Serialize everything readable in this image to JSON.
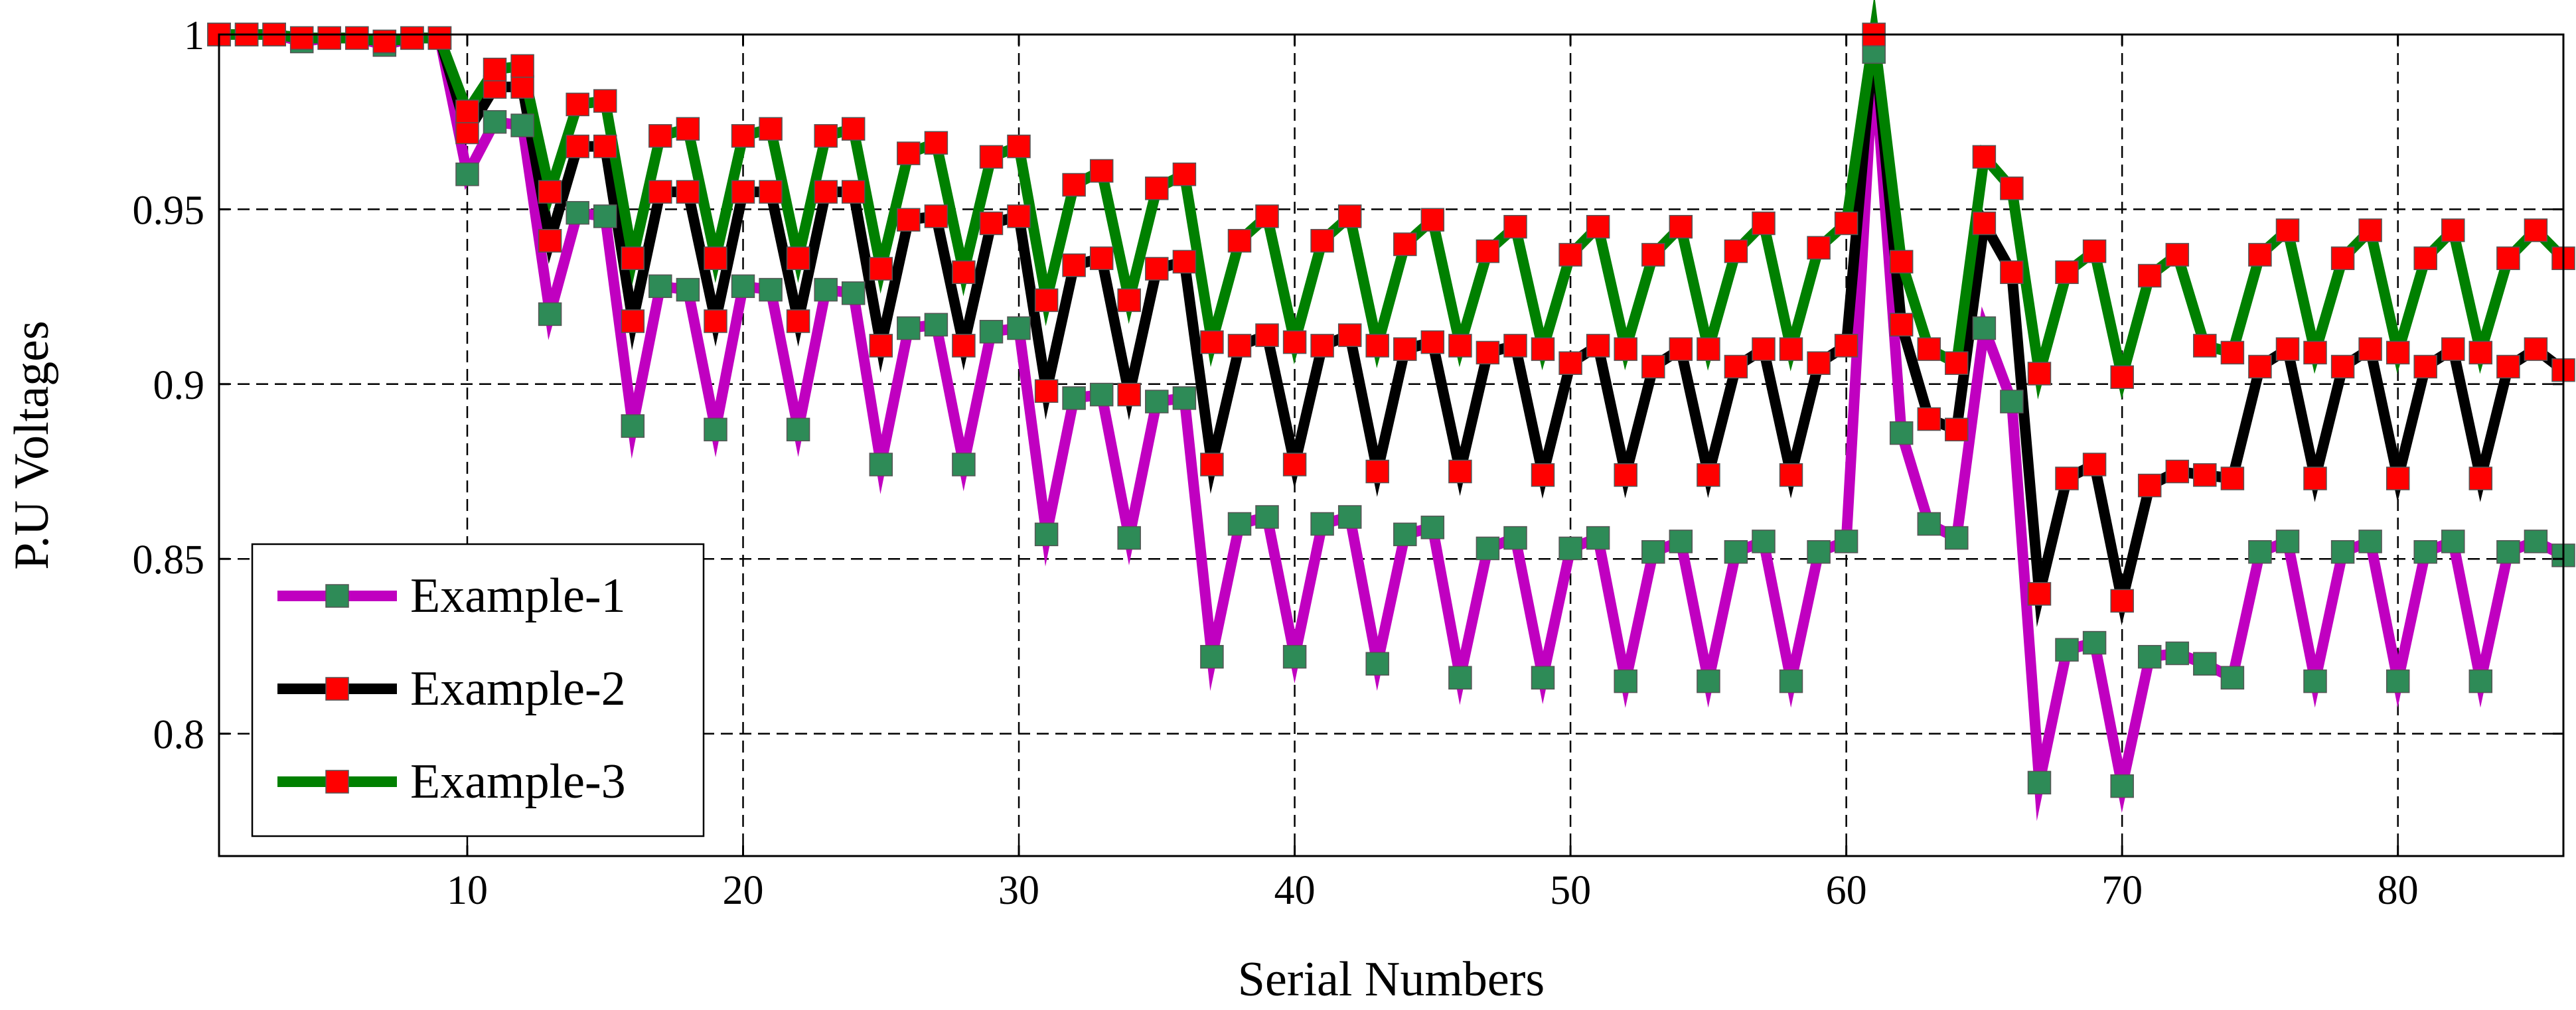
{
  "chart_data": {
    "type": "line",
    "title": "",
    "xlabel": "Serial Numbers",
    "ylabel": "P.U Voltages",
    "xlim": [
      1,
      86
    ],
    "ylim": [
      0.765,
      1
    ],
    "x_ticks": [
      10,
      20,
      30,
      40,
      50,
      60,
      70,
      80
    ],
    "y_ticks": [
      {
        "value": 0.8,
        "label": "0.8"
      },
      {
        "value": 0.85,
        "label": "0.85"
      },
      {
        "value": 0.9,
        "label": "0.9"
      },
      {
        "value": 0.95,
        "label": "0.95"
      },
      {
        "value": 1,
        "label": "1"
      }
    ],
    "grid": true,
    "legend_position": "bottom-left",
    "series": [
      {
        "name": "Example-1",
        "line_color": "#c000c0",
        "marker_color": "#2e8b57",
        "values": [
          1.0,
          1.0,
          1.0,
          0.998,
          0.999,
          0.999,
          0.997,
          0.999,
          0.999,
          0.96,
          0.975,
          0.974,
          0.92,
          0.949,
          0.948,
          0.888,
          0.928,
          0.927,
          0.887,
          0.928,
          0.927,
          0.887,
          0.927,
          0.926,
          0.877,
          0.916,
          0.917,
          0.877,
          0.915,
          0.916,
          0.857,
          0.896,
          0.897,
          0.856,
          0.895,
          0.896,
          0.822,
          0.86,
          0.862,
          0.822,
          0.86,
          0.862,
          0.82,
          0.857,
          0.859,
          0.816,
          0.853,
          0.856,
          0.816,
          0.853,
          0.856,
          0.815,
          0.852,
          0.855,
          0.815,
          0.852,
          0.855,
          0.815,
          0.852,
          0.855,
          0.995,
          0.886,
          0.86,
          0.856,
          0.916,
          0.895,
          0.786,
          0.824,
          0.826,
          0.785,
          0.822,
          0.823,
          0.82,
          0.816,
          0.852,
          0.855,
          0.815,
          0.852,
          0.855,
          0.815,
          0.852,
          0.855,
          0.815,
          0.852,
          0.855,
          0.851
        ]
      },
      {
        "name": "Example-2",
        "line_color": "#000000",
        "marker_color": "#ff0000",
        "values": [
          1.0,
          1.0,
          1.0,
          0.999,
          0.999,
          0.999,
          0.998,
          0.999,
          0.999,
          0.972,
          0.985,
          0.985,
          0.941,
          0.968,
          0.968,
          0.918,
          0.955,
          0.955,
          0.918,
          0.955,
          0.955,
          0.918,
          0.955,
          0.955,
          0.911,
          0.947,
          0.948,
          0.911,
          0.946,
          0.948,
          0.898,
          0.934,
          0.936,
          0.897,
          0.933,
          0.935,
          0.877,
          0.911,
          0.914,
          0.877,
          0.911,
          0.914,
          0.875,
          0.91,
          0.912,
          0.875,
          0.909,
          0.911,
          0.874,
          0.906,
          0.911,
          0.874,
          0.905,
          0.91,
          0.874,
          0.905,
          0.91,
          0.874,
          0.906,
          0.911,
          1.0,
          0.917,
          0.89,
          0.887,
          0.946,
          0.932,
          0.84,
          0.873,
          0.877,
          0.838,
          0.871,
          0.875,
          0.874,
          0.873,
          0.905,
          0.91,
          0.873,
          0.905,
          0.91,
          0.873,
          0.905,
          0.91,
          0.873,
          0.905,
          0.91,
          0.904
        ]
      },
      {
        "name": "Example-3",
        "line_color": "#008000",
        "marker_color": "#ff0000",
        "values": [
          1.0,
          1.0,
          1.0,
          0.999,
          0.999,
          0.999,
          0.998,
          0.999,
          0.999,
          0.978,
          0.99,
          0.991,
          0.955,
          0.98,
          0.981,
          0.936,
          0.971,
          0.973,
          0.936,
          0.971,
          0.973,
          0.936,
          0.971,
          0.973,
          0.933,
          0.966,
          0.969,
          0.932,
          0.965,
          0.968,
          0.924,
          0.957,
          0.961,
          0.924,
          0.956,
          0.96,
          0.912,
          0.941,
          0.948,
          0.912,
          0.941,
          0.948,
          0.911,
          0.94,
          0.947,
          0.911,
          0.938,
          0.945,
          0.91,
          0.937,
          0.945,
          0.91,
          0.937,
          0.945,
          0.91,
          0.938,
          0.946,
          0.91,
          0.939,
          0.946,
          1.0,
          0.935,
          0.91,
          0.906,
          0.965,
          0.956,
          0.903,
          0.932,
          0.938,
          0.902,
          0.931,
          0.937,
          0.911,
          0.909,
          0.937,
          0.944,
          0.909,
          0.936,
          0.944,
          0.909,
          0.936,
          0.944,
          0.909,
          0.936,
          0.944,
          0.936
        ]
      }
    ]
  }
}
